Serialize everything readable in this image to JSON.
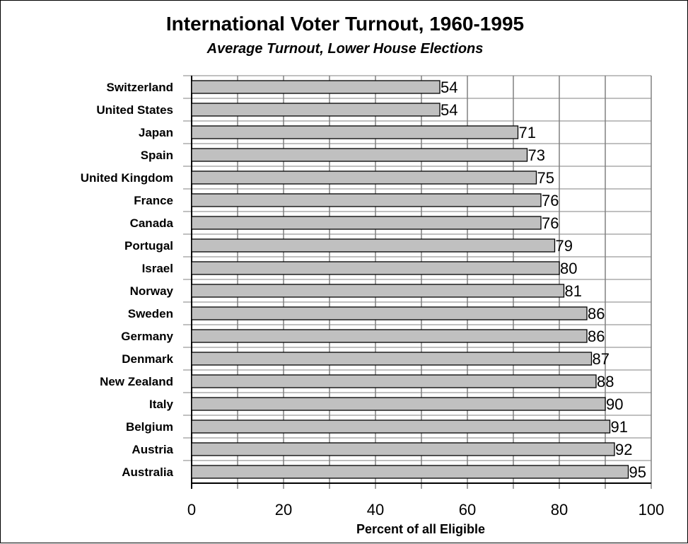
{
  "chart_data": {
    "type": "bar",
    "orientation": "horizontal",
    "title": "International Voter Turnout, 1960-1995",
    "subtitle": "Average Turnout, Lower House Elections",
    "xlabel": "Percent of all Eligible",
    "ylabel": "",
    "categories": [
      "Switzerland",
      "United States",
      "Japan",
      "Spain",
      "United Kingdom",
      "France",
      "Canada",
      "Portugal",
      "Israel",
      "Norway",
      "Sweden",
      "Germany",
      "Denmark",
      "New Zealand",
      "Italy",
      "Belgium",
      "Austria",
      "Australia"
    ],
    "values": [
      54,
      54,
      71,
      73,
      75,
      76,
      76,
      79,
      80,
      81,
      86,
      86,
      87,
      88,
      90,
      91,
      92,
      95
    ],
    "xlim": [
      0,
      100
    ],
    "xticks": [
      "0",
      "20",
      "40",
      "60",
      "80",
      "100"
    ],
    "grid": true,
    "bar_color": "#c0c0c0",
    "grid_color": "#808080"
  }
}
